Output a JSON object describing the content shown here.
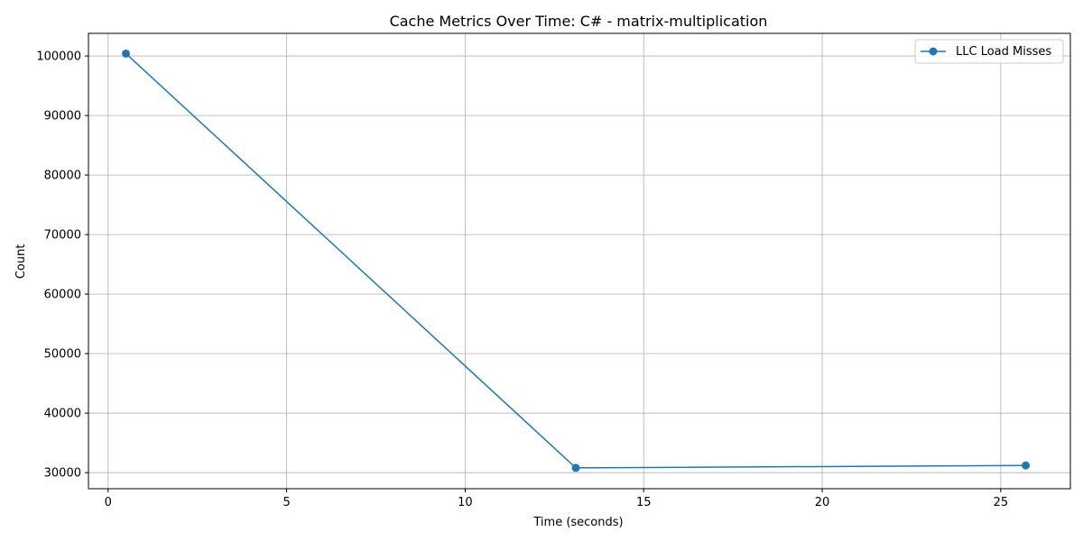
{
  "chart_data": {
    "type": "line",
    "title": "Cache Metrics Over Time: C# - matrix-multiplication",
    "xlabel": "Time (seconds)",
    "ylabel": "Count",
    "xlim": [
      -0.55,
      26.95
    ],
    "ylim": [
      27300,
      103800
    ],
    "xticks": [
      0,
      5,
      10,
      15,
      20,
      25
    ],
    "yticks": [
      30000,
      40000,
      50000,
      60000,
      70000,
      80000,
      90000,
      100000
    ],
    "grid": true,
    "legend_position": "top-right",
    "series": [
      {
        "name": "LLC Load Misses",
        "color": "#1f77b4",
        "marker": "circle",
        "points": [
          {
            "x": 0.5,
            "y": 100400
          },
          {
            "x": 13.1,
            "y": 30800
          },
          {
            "x": 25.7,
            "y": 31200
          }
        ]
      }
    ]
  }
}
